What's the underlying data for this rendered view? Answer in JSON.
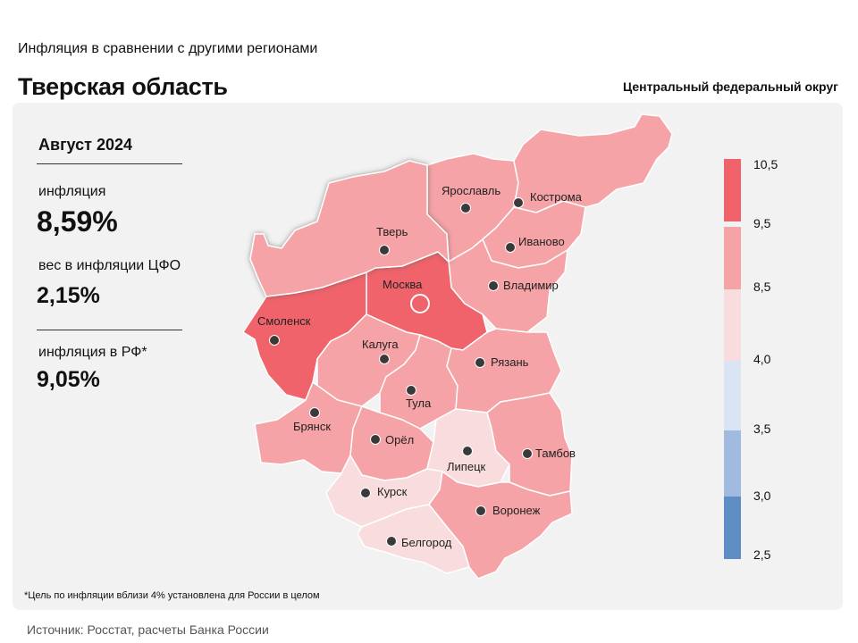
{
  "header": {
    "subtitle": "Инфляция в сравнении с другими регионами",
    "title": "Тверская область",
    "district": "Центральный федеральный округ"
  },
  "stats": {
    "period": "Август 2024",
    "inflation_label": "инфляция",
    "inflation_value": "8,59%",
    "weight_label": "вес в инфляции ЦФО",
    "weight_value": "2,15%",
    "rf_label": "инфляция в РФ*",
    "rf_value": "9,05%"
  },
  "legend": {
    "ticks": [
      "10,5",
      "9,5",
      "8,5",
      "4,0",
      "3,5",
      "3,0",
      "2,5"
    ],
    "colors": [
      "#f0636a",
      "#f5a3a6",
      "#f9dcdd",
      "#dae4f3",
      "#a0bbdf",
      "#5f8ec6"
    ]
  },
  "regions": {
    "tver": {
      "name": "Тверь",
      "color": "#f5a3a6",
      "highlighted": true
    },
    "yaroslavl": {
      "name": "Ярославль",
      "color": "#f5a3a6"
    },
    "kostroma": {
      "name": "Кострома",
      "color": "#f5a3a6"
    },
    "ivanovo": {
      "name": "Иваново",
      "color": "#f5a3a6"
    },
    "vladimir": {
      "name": "Владимир",
      "color": "#f5a3a6"
    },
    "moscow": {
      "name": "Москва",
      "color": "#f0636a"
    },
    "smolensk": {
      "name": "Смоленск",
      "color": "#f0636a"
    },
    "kaluga": {
      "name": "Калуга",
      "color": "#f5a3a6"
    },
    "tula": {
      "name": "Тула",
      "color": "#f5a3a6"
    },
    "ryazan": {
      "name": "Рязань",
      "color": "#f5a3a6"
    },
    "bryansk": {
      "name": "Брянск",
      "color": "#f5a3a6"
    },
    "orel": {
      "name": "Орёл",
      "color": "#f5a3a6"
    },
    "lipetsk": {
      "name": "Липецк",
      "color": "#f9dcdd"
    },
    "tambov": {
      "name": "Тамбов",
      "color": "#f5a3a6"
    },
    "kursk": {
      "name": "Курск",
      "color": "#f9dcdd"
    },
    "voronezh": {
      "name": "Воронеж",
      "color": "#f5a3a6"
    },
    "belgorod": {
      "name": "Белгород",
      "color": "#f9dcdd"
    }
  },
  "footer": {
    "footnote": "*Цель по инфляции вблизи 4% установлена для России в целом",
    "source": "Источник: Росстат, расчеты Банка России"
  }
}
